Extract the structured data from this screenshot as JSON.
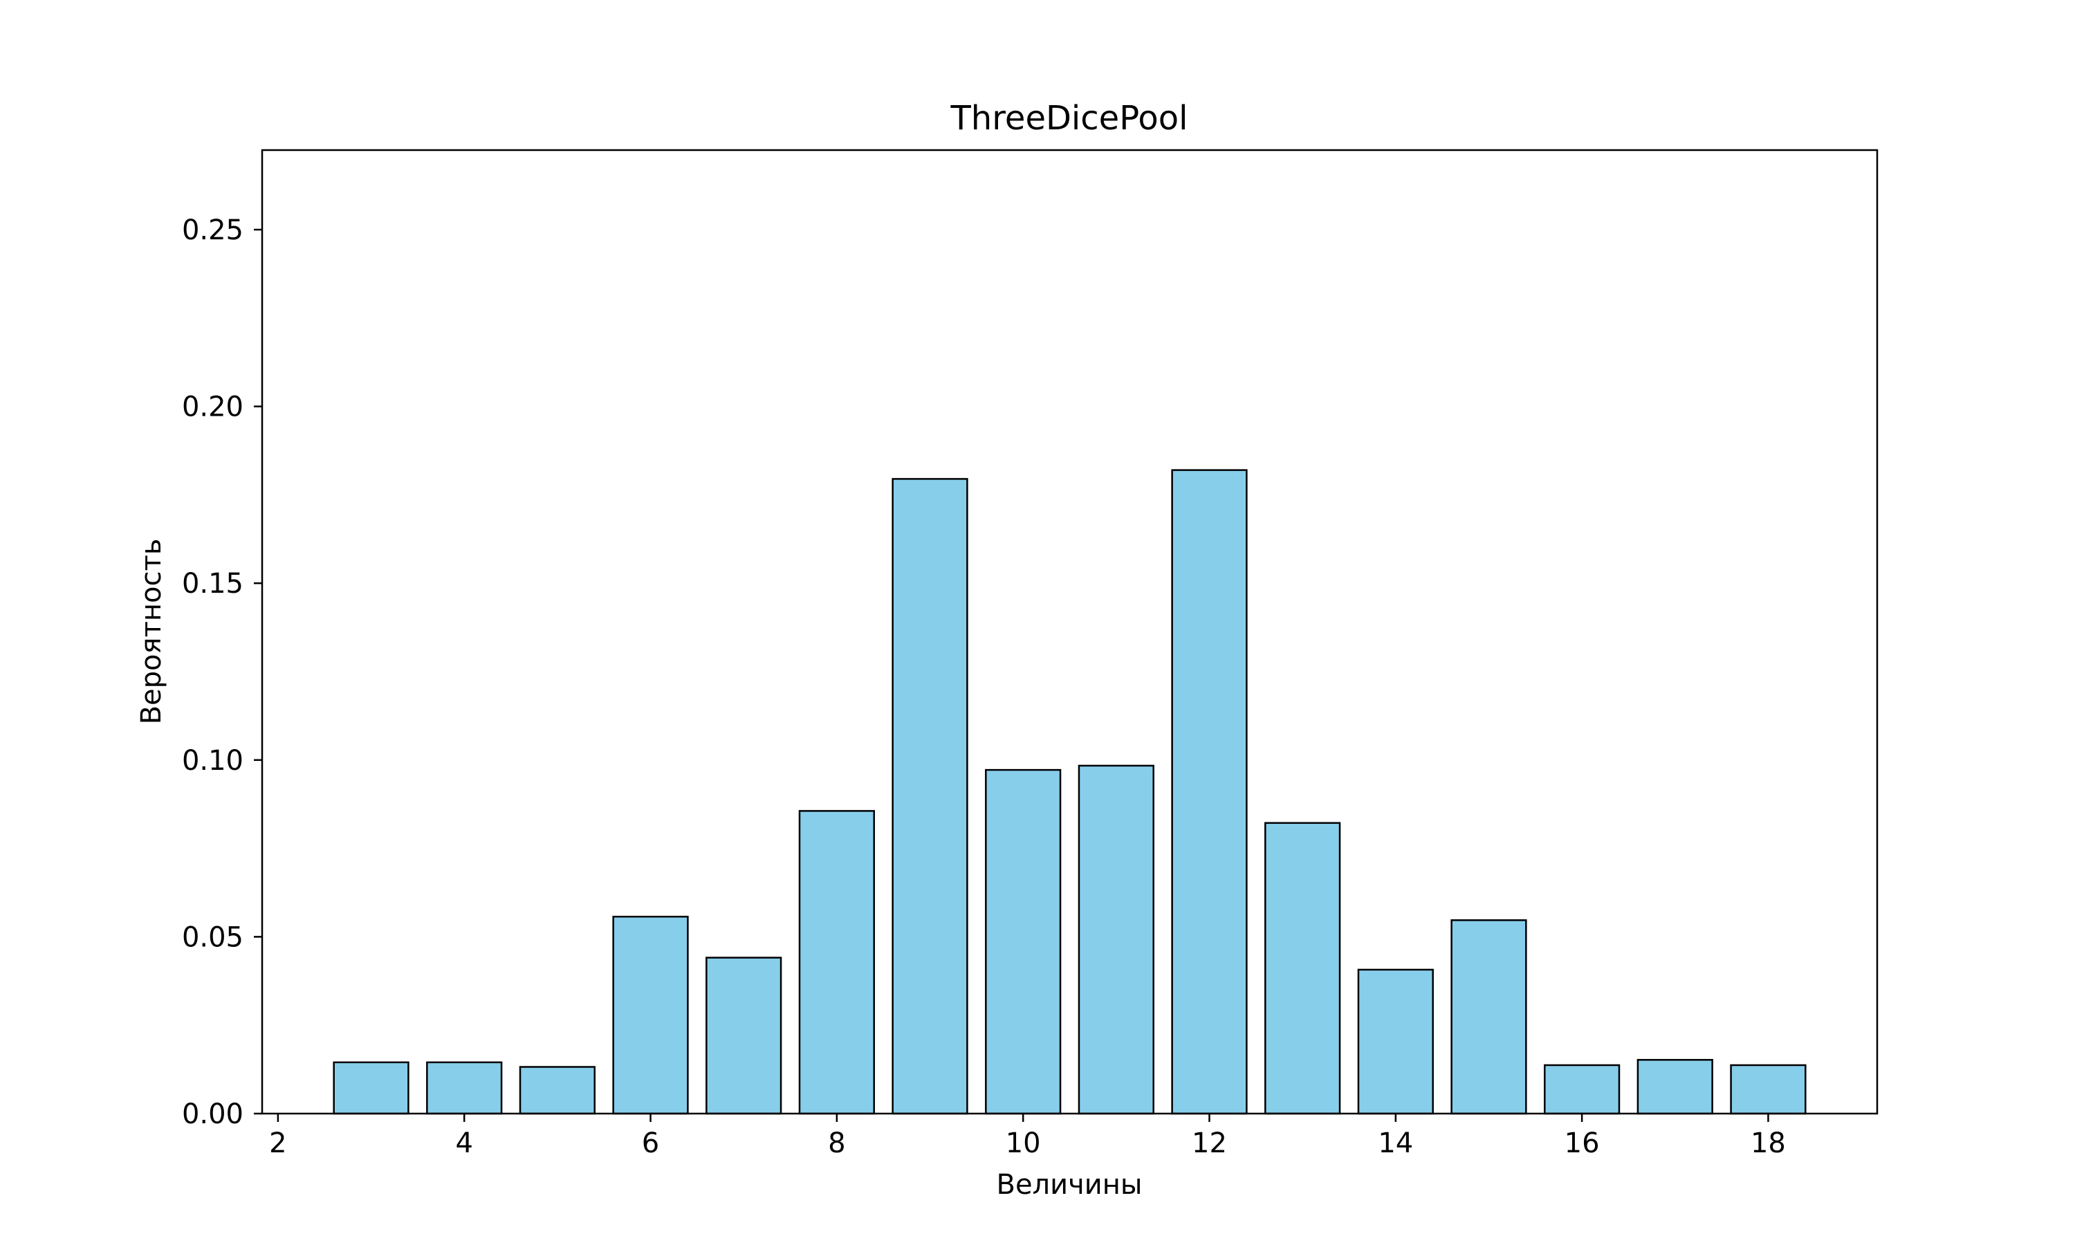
{
  "chart_data": {
    "type": "bar",
    "title": "ThreeDicePool",
    "xlabel": "Величины",
    "ylabel": "Вероятность",
    "x": [
      3,
      4,
      5,
      6,
      7,
      8,
      9,
      10,
      11,
      12,
      13,
      14,
      15,
      16,
      17,
      18
    ],
    "values": [
      0.0145,
      0.0145,
      0.0132,
      0.0557,
      0.0441,
      0.0856,
      0.1795,
      0.0972,
      0.0984,
      0.182,
      0.0822,
      0.0407,
      0.0547,
      0.0137,
      0.0152,
      0.0137
    ],
    "xlim": [
      1.83,
      19.17
    ],
    "ylim": [
      0,
      0.2725
    ],
    "x_ticks": [
      2,
      4,
      6,
      8,
      10,
      12,
      14,
      16,
      18
    ],
    "y_ticks": [
      0.0,
      0.05,
      0.1,
      0.15,
      0.2,
      0.25
    ],
    "x_tick_labels": [
      "2",
      "4",
      "6",
      "8",
      "10",
      "12",
      "14",
      "16",
      "18"
    ],
    "y_tick_labels": [
      "0.00",
      "0.05",
      "0.10",
      "0.15",
      "0.20",
      "0.25"
    ],
    "bar_width": 0.8,
    "bar_color": "#87CEEB",
    "bar_edge_color": "#000000",
    "grid": false,
    "legend": "none"
  }
}
